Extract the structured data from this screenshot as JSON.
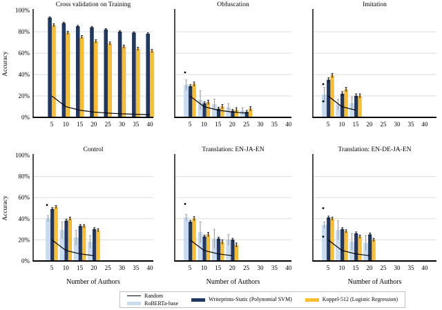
{
  "colors": {
    "roberta": "#c9dcef",
    "roberta_edge": "#aec8e0",
    "writeprints": "#1f3864",
    "writeprints_edge": "#16294a",
    "koppel": "#fdbe2d",
    "koppel_edge": "#dfa013",
    "grid": "#dbdbdb",
    "axis": "#000000",
    "random_line": "#000000",
    "err_gray": "#999999"
  },
  "ytick_labels": [
    "0%",
    "20%",
    "40%",
    "60%",
    "80%",
    "100%"
  ],
  "legend": {
    "entries": [
      {
        "name": "Random",
        "swatch": "line"
      },
      {
        "name": "RoBERTa-base",
        "swatch": "roberta"
      },
      {
        "name": "Writeprints-Static (Polynomial SVM)",
        "swatch": "writeprints"
      },
      {
        "name": "Koppel-512 (Logistic Regression)",
        "swatch": "koppel"
      }
    ]
  },
  "chart_data": [
    {
      "type": "bar",
      "title": "Cross validation on Training",
      "categories": [
        5,
        10,
        15,
        20,
        25,
        30,
        35,
        40
      ],
      "ylabel": "Accuracy",
      "xlabel": "",
      "show_yticks": true,
      "ylim": [
        0,
        100
      ],
      "random": [
        20,
        10,
        6.7,
        5,
        4,
        3.3,
        2.9,
        2.5
      ],
      "series": [
        {
          "name": "Writeprints-Static (Polynomial SVM)",
          "color_key": "writeprints",
          "values": [
            93,
            88,
            85,
            84,
            82,
            80,
            79,
            78
          ],
          "err": 1
        },
        {
          "name": "Koppel-512 (Logistic Regression)",
          "color_key": "koppel",
          "values": [
            86,
            79,
            75,
            71,
            69,
            66,
            64,
            62
          ],
          "err": 1.5
        }
      ],
      "dots": []
    },
    {
      "type": "bar",
      "title": "Obfuscation",
      "categories": [
        5,
        10,
        15,
        20,
        25,
        30,
        35,
        40
      ],
      "ylabel": "",
      "xlabel": "",
      "show_yticks": false,
      "ylim": [
        0,
        100
      ],
      "random": [
        20,
        10,
        6.7,
        5,
        4
      ],
      "series": [
        {
          "name": "RoBERTa-base",
          "color_key": "roberta",
          "values": [
            30,
            16,
            12,
            9,
            6
          ],
          "err": [
            5,
            9,
            5,
            4,
            3
          ]
        },
        {
          "name": "Writeprints-Static (Polynomial SVM)",
          "color_key": "writeprints",
          "values": [
            29,
            13,
            8,
            6,
            5
          ],
          "err": 1.5
        },
        {
          "name": "Koppel-512 (Logistic Regression)",
          "color_key": "koppel",
          "values": [
            31,
            14,
            10,
            7,
            8
          ],
          "err": 2
        }
      ],
      "dots": [
        {
          "cat": 5,
          "val": 42
        }
      ]
    },
    {
      "type": "bar",
      "title": "Imitation",
      "categories": [
        5,
        10,
        15,
        20,
        25,
        30,
        35,
        40
      ],
      "ylabel": "",
      "xlabel": "",
      "show_yticks": false,
      "ylim": [
        0,
        100
      ],
      "random": [
        20,
        10,
        6.7
      ],
      "series": [
        {
          "name": "RoBERTa-base",
          "color_key": "roberta",
          "values": [
            21,
            12,
            13
          ],
          "err": [
            7,
            5,
            6
          ]
        },
        {
          "name": "Writeprints-Static (Polynomial SVM)",
          "color_key": "writeprints",
          "values": [
            35,
            22,
            20
          ],
          "err": 2
        },
        {
          "name": "Koppel-512 (Logistic Regression)",
          "color_key": "koppel",
          "values": [
            39,
            26,
            20
          ],
          "err": 2
        }
      ],
      "dots": [
        {
          "cat": 5,
          "val": 31
        },
        {
          "cat": 5,
          "val": 15
        }
      ]
    },
    {
      "type": "bar",
      "title": "Control",
      "categories": [
        5,
        10,
        15,
        20,
        25,
        30,
        35,
        40
      ],
      "ylabel": "Accuracy",
      "xlabel": "Number of Authors",
      "show_yticks": true,
      "ylim": [
        0,
        100
      ],
      "random": [
        20,
        10,
        6.7,
        5
      ],
      "series": [
        {
          "name": "RoBERTa-base",
          "color_key": "roberta",
          "values": [
            40,
            29,
            22,
            18
          ],
          "err": [
            3,
            8,
            7,
            6
          ]
        },
        {
          "name": "Writeprints-Static (Polynomial SVM)",
          "color_key": "writeprints",
          "values": [
            49,
            38,
            33,
            30
          ],
          "err": 1.5
        },
        {
          "name": "Koppel-512 (Logistic Regression)",
          "color_key": "koppel",
          "values": [
            51,
            40,
            33,
            29
          ],
          "err": 1.5
        }
      ],
      "dots": [
        {
          "cat": 5,
          "val": 53
        }
      ]
    },
    {
      "type": "bar",
      "title": "Translation: EN-JA-EN",
      "categories": [
        5,
        10,
        15,
        20,
        25,
        30,
        35,
        40
      ],
      "ylabel": "",
      "xlabel": "Number of Authors",
      "show_yticks": false,
      "ylim": [
        0,
        100
      ],
      "random": [
        20,
        10,
        6.7,
        5
      ],
      "series": [
        {
          "name": "RoBERTa-base",
          "color_key": "roberta",
          "values": [
            41,
            27,
            21,
            20
          ],
          "err": [
            3,
            10,
            9,
            5
          ]
        },
        {
          "name": "Writeprints-Static (Polynomial SVM)",
          "color_key": "writeprints",
          "values": [
            37,
            23,
            21,
            20
          ],
          "err": 1.5
        },
        {
          "name": "Koppel-512 (Logistic Regression)",
          "color_key": "koppel",
          "values": [
            40,
            25,
            18,
            15
          ],
          "err": 2
        }
      ],
      "dots": [
        {
          "cat": 5,
          "val": 54
        }
      ]
    },
    {
      "type": "bar",
      "title": "Translation: EN-DE-JA-EN",
      "categories": [
        5,
        10,
        15,
        20,
        25,
        30,
        35,
        40
      ],
      "ylabel": "",
      "xlabel": "Number of Authors",
      "show_yticks": false,
      "ylim": [
        0,
        100
      ],
      "random": [
        20,
        10,
        6.7,
        5
      ],
      "series": [
        {
          "name": "RoBERTa-base",
          "color_key": "roberta",
          "values": [
            34,
            29,
            18,
            17
          ],
          "err": [
            3,
            9,
            8,
            7
          ]
        },
        {
          "name": "Writeprints-Static (Polynomial SVM)",
          "color_key": "writeprints",
          "values": [
            41,
            30,
            26,
            25
          ],
          "err": 1.5
        },
        {
          "name": "Koppel-512 (Logistic Regression)",
          "color_key": "koppel",
          "values": [
            40,
            28,
            23,
            20
          ],
          "err": 1.5
        }
      ],
      "dots": [
        {
          "cat": 5,
          "val": 50
        },
        {
          "cat": 5,
          "val": 23
        }
      ]
    }
  ]
}
